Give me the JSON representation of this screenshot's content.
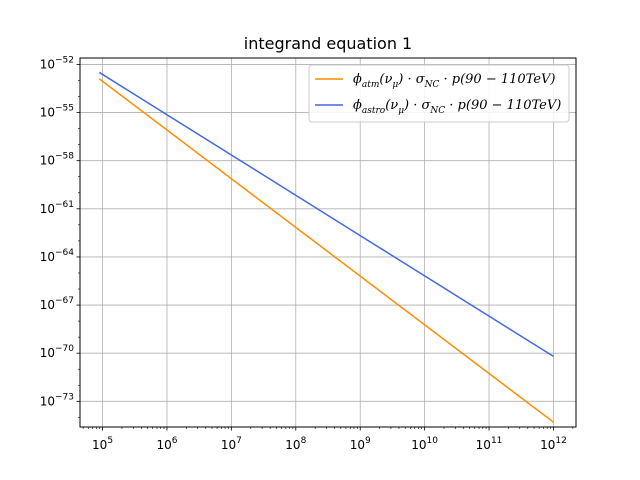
{
  "chart_data": {
    "type": "line",
    "title": "integrand equation 1",
    "xlabel": "",
    "ylabel": "",
    "x_scale": "log",
    "y_scale": "log",
    "grid": true,
    "legend_position": "top-right",
    "xlim_exp": [
      4.65,
      12.35
    ],
    "ylim_exp": [
      -74.6,
      -51.6
    ],
    "x_ticks": [
      {
        "base": "10",
        "exp": "5",
        "value_exp": 5
      },
      {
        "base": "10",
        "exp": "6",
        "value_exp": 6
      },
      {
        "base": "10",
        "exp": "7",
        "value_exp": 7
      },
      {
        "base": "10",
        "exp": "8",
        "value_exp": 8
      },
      {
        "base": "10",
        "exp": "9",
        "value_exp": 9
      },
      {
        "base": "10",
        "exp": "10",
        "value_exp": 10
      },
      {
        "base": "10",
        "exp": "11",
        "value_exp": 11
      },
      {
        "base": "10",
        "exp": "12",
        "value_exp": 12
      }
    ],
    "y_ticks": [
      {
        "base": "10",
        "exp": "−52",
        "value_exp": -52
      },
      {
        "base": "10",
        "exp": "−55",
        "value_exp": -55
      },
      {
        "base": "10",
        "exp": "−58",
        "value_exp": -58
      },
      {
        "base": "10",
        "exp": "−61",
        "value_exp": -61
      },
      {
        "base": "10",
        "exp": "−64",
        "value_exp": -64
      },
      {
        "base": "10",
        "exp": "−67",
        "value_exp": -67
      },
      {
        "base": "10",
        "exp": "−70",
        "value_exp": -70
      },
      {
        "base": "10",
        "exp": "−73",
        "value_exp": -73
      }
    ],
    "series": [
      {
        "name": "ϕatm(νμ)·σNC·p(90−110TeV)",
        "legend": {
          "main": "ϕ",
          "sub1": "atm",
          "mid1": "(ν",
          "sub2": "μ",
          "mid2": ") · σ",
          "sub3": "NC",
          "tail": " · p(90 − 110TeV)"
        },
        "color": "#ff8c00",
        "x_exp": [
          4.95,
          12.0
        ],
        "y_exp": [
          -52.9,
          -74.3
        ]
      },
      {
        "name": "ϕastro(νμ)·σNC·p(90−110TeV)",
        "legend": {
          "main": "ϕ",
          "sub1": "astro",
          "mid1": "(ν",
          "sub2": "μ",
          "mid2": ") · σ",
          "sub3": "NC",
          "tail": " · p(90 − 110TeV)"
        },
        "color": "#4169e1",
        "x_exp": [
          4.95,
          12.0
        ],
        "y_exp": [
          -52.5,
          -70.2
        ]
      }
    ]
  }
}
